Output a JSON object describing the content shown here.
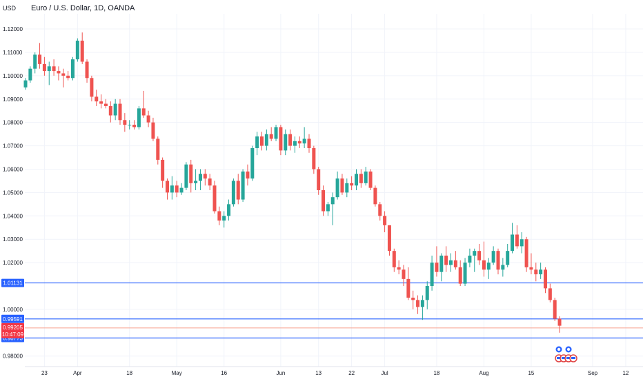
{
  "header": {
    "currency_label": "USD",
    "symbol_title": "Euro / U.S. Dollar, 1D, OANDA"
  },
  "colors": {
    "up": "#26a69a",
    "down": "#ef5350",
    "hline": "#2962ff",
    "current_line": "#f7a28f",
    "price_tag_bg": "#f23645",
    "hline_tag_bg": "#2962ff",
    "axis_text": "#131722",
    "grid": "#f0f3fa"
  },
  "chart_data": {
    "type": "candlestick",
    "y_ticks": [
      "1.12000",
      "1.11000",
      "1.10000",
      "1.09000",
      "1.08000",
      "1.07000",
      "1.06000",
      "1.05000",
      "1.04000",
      "1.03000",
      "1.02000",
      "1.00000",
      "0.98000"
    ],
    "ylim": [
      0.9755,
      1.1265
    ],
    "x_ticks": [
      {
        "label": "23",
        "date": "2022-03-23"
      },
      {
        "label": "Apr",
        "date": "2022-04-01"
      },
      {
        "label": "18",
        "date": "2022-04-18"
      },
      {
        "label": "May",
        "date": "2022-05-02"
      },
      {
        "label": "16",
        "date": "2022-05-16"
      },
      {
        "label": "Jun",
        "date": "2022-06-01"
      },
      {
        "label": "13",
        "date": "2022-06-13"
      },
      {
        "label": "22",
        "date": "2022-06-22"
      },
      {
        "label": "Jul",
        "date": "2022-07-01"
      },
      {
        "label": "18",
        "date": "2022-07-18"
      },
      {
        "label": "Aug",
        "date": "2022-08-01"
      },
      {
        "label": "15",
        "date": "2022-08-15"
      },
      {
        "label": "Sep",
        "date": "2022-09-01"
      },
      {
        "label": "12",
        "date": "2022-09-12"
      }
    ],
    "horizontal_lines": [
      {
        "price": 1.01131,
        "label": "1.01131"
      },
      {
        "price": 0.99591,
        "label": "0.99591"
      },
      {
        "price": 0.98773,
        "label": "0.98773"
      }
    ],
    "current_price": {
      "price": 0.99205,
      "label": "0.99205",
      "countdown": "10:47:09"
    },
    "candles": [
      [
        1.095,
        1.099,
        1.094,
        1.098
      ],
      [
        1.098,
        1.104,
        1.097,
        1.103
      ],
      [
        1.103,
        1.11,
        1.101,
        1.109
      ],
      [
        1.109,
        1.114,
        1.103,
        1.105
      ],
      [
        1.105,
        1.108,
        1.1,
        1.102
      ],
      [
        1.102,
        1.106,
        1.096,
        1.104
      ],
      [
        1.104,
        1.107,
        1.1,
        1.102
      ],
      [
        1.102,
        1.104,
        1.098,
        1.101
      ],
      [
        1.101,
        1.103,
        1.095,
        1.1
      ],
      [
        1.1,
        1.102,
        1.098,
        1.099
      ],
      [
        1.099,
        1.108,
        1.098,
        1.107
      ],
      [
        1.107,
        1.116,
        1.106,
        1.115
      ],
      [
        1.115,
        1.1185,
        1.105,
        1.106
      ],
      [
        1.106,
        1.107,
        1.097,
        1.099
      ],
      [
        1.099,
        1.1,
        1.089,
        1.091
      ],
      [
        1.091,
        1.094,
        1.087,
        1.089
      ],
      [
        1.089,
        1.092,
        1.086,
        1.088
      ],
      [
        1.088,
        1.09,
        1.086,
        1.087
      ],
      [
        1.087,
        1.089,
        1.08,
        1.083
      ],
      [
        1.083,
        1.09,
        1.081,
        1.088
      ],
      [
        1.088,
        1.09,
        1.079,
        1.081
      ],
      [
        1.081,
        1.084,
        1.076,
        1.079
      ],
      [
        1.079,
        1.081,
        1.077,
        1.079
      ],
      [
        1.079,
        1.081,
        1.077,
        1.078
      ],
      [
        1.078,
        1.087,
        1.077,
        1.086
      ],
      [
        1.086,
        1.0935,
        1.082,
        1.083
      ],
      [
        1.083,
        1.085,
        1.078,
        1.08
      ],
      [
        1.08,
        1.082,
        1.072,
        1.073
      ],
      [
        1.073,
        1.074,
        1.062,
        1.064
      ],
      [
        1.064,
        1.065,
        1.052,
        1.055
      ],
      [
        1.055,
        1.056,
        1.047,
        1.05
      ],
      [
        1.05,
        1.057,
        1.047,
        1.053
      ],
      [
        1.053,
        1.055,
        1.048,
        1.05
      ],
      [
        1.05,
        1.054,
        1.049,
        1.052
      ],
      [
        1.052,
        1.063,
        1.051,
        1.062
      ],
      [
        1.062,
        1.064,
        1.05,
        1.054
      ],
      [
        1.054,
        1.06,
        1.051,
        1.055
      ],
      [
        1.055,
        1.06,
        1.051,
        1.058
      ],
      [
        1.058,
        1.06,
        1.053,
        1.056
      ],
      [
        1.056,
        1.058,
        1.051,
        1.053
      ],
      [
        1.053,
        1.055,
        1.041,
        1.042
      ],
      [
        1.042,
        1.044,
        1.036,
        1.038
      ],
      [
        1.038,
        1.042,
        1.035,
        1.04
      ],
      [
        1.04,
        1.047,
        1.038,
        1.045
      ],
      [
        1.045,
        1.056,
        1.044,
        1.055
      ],
      [
        1.055,
        1.058,
        1.045,
        1.047
      ],
      [
        1.047,
        1.06,
        1.046,
        1.059
      ],
      [
        1.059,
        1.062,
        1.053,
        1.056
      ],
      [
        1.056,
        1.07,
        1.055,
        1.069
      ],
      [
        1.069,
        1.076,
        1.066,
        1.074
      ],
      [
        1.074,
        1.076,
        1.068,
        1.07
      ],
      [
        1.07,
        1.077,
        1.068,
        1.075
      ],
      [
        1.075,
        1.078,
        1.072,
        1.073
      ],
      [
        1.073,
        1.079,
        1.072,
        1.078
      ],
      [
        1.078,
        1.079,
        1.066,
        1.068
      ],
      [
        1.068,
        1.077,
        1.066,
        1.075
      ],
      [
        1.075,
        1.077,
        1.068,
        1.07
      ],
      [
        1.07,
        1.074,
        1.067,
        1.072
      ],
      [
        1.072,
        1.074,
        1.069,
        1.071
      ],
      [
        1.071,
        1.078,
        1.069,
        1.073
      ],
      [
        1.073,
        1.075,
        1.067,
        1.069
      ],
      [
        1.069,
        1.07,
        1.058,
        1.06
      ],
      [
        1.06,
        1.061,
        1.049,
        1.051
      ],
      [
        1.051,
        1.053,
        1.04,
        1.042
      ],
      [
        1.042,
        1.046,
        1.04,
        1.045
      ],
      [
        1.045,
        1.05,
        1.036,
        1.048
      ],
      [
        1.048,
        1.059,
        1.047,
        1.056
      ],
      [
        1.056,
        1.058,
        1.049,
        1.05
      ],
      [
        1.05,
        1.056,
        1.048,
        1.054
      ],
      [
        1.054,
        1.057,
        1.051,
        1.053
      ],
      [
        1.053,
        1.06,
        1.051,
        1.058
      ],
      [
        1.058,
        1.06,
        1.052,
        1.054
      ],
      [
        1.054,
        1.061,
        1.053,
        1.059
      ],
      [
        1.059,
        1.06,
        1.051,
        1.052
      ],
      [
        1.052,
        1.053,
        1.044,
        1.045
      ],
      [
        1.045,
        1.046,
        1.038,
        1.04
      ],
      [
        1.04,
        1.042,
        1.033,
        1.036
      ],
      [
        1.036,
        1.036,
        1.023,
        1.025
      ],
      [
        1.025,
        1.026,
        1.016,
        1.018
      ],
      [
        1.018,
        1.021,
        1.015,
        1.017
      ],
      [
        1.017,
        1.019,
        1.01,
        1.013
      ],
      [
        1.013,
        1.018,
        1.004,
        1.005
      ],
      [
        1.005,
        1.008,
        1.0,
        1.004
      ],
      [
        1.004,
        1.006,
        0.998,
        1.001
      ],
      [
        1.001,
        1.006,
        0.9955,
        1.004
      ],
      [
        1.004,
        1.012,
        1.0,
        1.01
      ],
      [
        1.01,
        1.023,
        1.008,
        1.02
      ],
      [
        1.02,
        1.027,
        1.014,
        1.016
      ],
      [
        1.016,
        1.024,
        1.012,
        1.023
      ],
      [
        1.023,
        1.027,
        1.016,
        1.019
      ],
      [
        1.019,
        1.024,
        1.016,
        1.021
      ],
      [
        1.021,
        1.025,
        1.017,
        1.018
      ],
      [
        1.018,
        1.021,
        1.01,
        1.011
      ],
      [
        1.011,
        1.022,
        1.01,
        1.02
      ],
      [
        1.02,
        1.026,
        1.018,
        1.023
      ],
      [
        1.023,
        1.026,
        1.016,
        1.025
      ],
      [
        1.025,
        1.028,
        1.019,
        1.021
      ],
      [
        1.021,
        1.029,
        1.014,
        1.017
      ],
      [
        1.017,
        1.022,
        1.013,
        1.02
      ],
      [
        1.02,
        1.027,
        1.019,
        1.025
      ],
      [
        1.025,
        1.026,
        1.015,
        1.017
      ],
      [
        1.017,
        1.022,
        1.014,
        1.019
      ],
      [
        1.019,
        1.028,
        1.018,
        1.025
      ],
      [
        1.025,
        1.037,
        1.024,
        1.032
      ],
      [
        1.032,
        1.036,
        1.026,
        1.027
      ],
      [
        1.027,
        1.033,
        1.024,
        1.03
      ],
      [
        1.03,
        1.031,
        1.016,
        1.018
      ],
      [
        1.018,
        1.024,
        1.015,
        1.017
      ],
      [
        1.017,
        1.02,
        1.012,
        1.015
      ],
      [
        1.015,
        1.02,
        1.013,
        1.017
      ],
      [
        1.017,
        1.018,
        1.007,
        1.009
      ],
      [
        1.009,
        1.011,
        1.003,
        1.004
      ],
      [
        1.004,
        1.005,
        0.995,
        0.996
      ],
      [
        0.996,
        0.997,
        0.99,
        0.993
      ]
    ],
    "candle_dates_start": "2022-03-17"
  },
  "events": {
    "flag_icon_label": "E"
  }
}
